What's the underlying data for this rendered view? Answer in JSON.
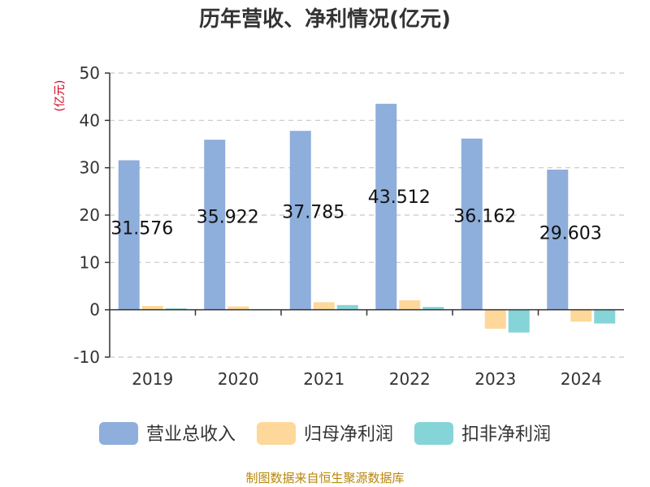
{
  "colors": {
    "revenue": "#8eaedb",
    "net_profit": "#fdd89a",
    "deducted_profit": "#85d4d8",
    "source_text": "#b8860b",
    "unit_text": "#d0021b"
  },
  "source": "制图数据来自恒生聚源数据库",
  "chart_data": {
    "type": "bar",
    "title": "历年营收、净利情况(亿元)",
    "ylabel": "(亿元)",
    "xlabel": "",
    "ylim": [
      -10,
      50
    ],
    "yticks": [
      50,
      40,
      30,
      20,
      10,
      0,
      -10
    ],
    "grid": true,
    "legend_position": "bottom",
    "categories": [
      "2019",
      "2020",
      "2021",
      "2022",
      "2023",
      "2024"
    ],
    "series": [
      {
        "name": "营业总收入",
        "values": [
          31.576,
          35.922,
          37.785,
          43.512,
          36.162,
          29.603
        ],
        "labels": [
          "31.576",
          "35.922",
          "37.785",
          "43.512",
          "36.162",
          "29.603"
        ]
      },
      {
        "name": "归母净利润",
        "values": [
          0.8,
          0.7,
          1.6,
          2.0,
          -4.0,
          -2.5
        ]
      },
      {
        "name": "扣非净利润",
        "values": [
          0.3,
          0.0,
          1.0,
          0.6,
          -4.8,
          -2.9
        ]
      }
    ]
  }
}
